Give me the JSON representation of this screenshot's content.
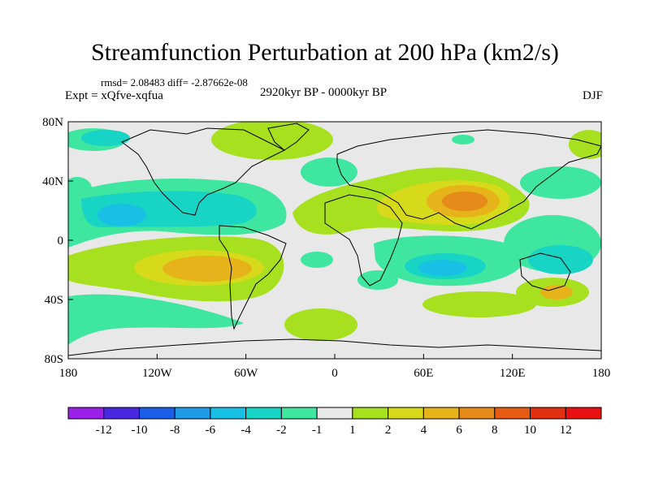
{
  "title": "Streamfunction Perturbation at 200 hPa (km2/s)",
  "stats": "rmsd= 2.08483 diff= -2.87662e-08",
  "experiment": "Expt = xQfve-xqfua",
  "period": "2920kyr BP - 0000kyr BP",
  "season": "DJF",
  "lat_ticks": [
    "80N",
    "40N",
    "0",
    "40S",
    "80S"
  ],
  "lon_ticks": [
    "180",
    "120W",
    "60W",
    "0",
    "60E",
    "120E",
    "180"
  ],
  "colorbar": {
    "labels": [
      "-12",
      "-10",
      "-8",
      "-6",
      "-4",
      "-2",
      "-1",
      "1",
      "2",
      "4",
      "6",
      "8",
      "10",
      "12"
    ],
    "colors": [
      "#9a20e8",
      "#4828e0",
      "#1a5ee8",
      "#1e9ae6",
      "#18c0e6",
      "#18d4c4",
      "#3ee6a0",
      "#e8e8e8",
      "#a6e01e",
      "#d6da1a",
      "#e6b41a",
      "#e68a1a",
      "#e65a12",
      "#e03010",
      "#e81010"
    ]
  },
  "map_fills": {
    "neutral": "#e8e8e8",
    "pos1": "#a6e01e",
    "pos2": "#d6da1a",
    "pos3": "#e6b41a",
    "pos4": "#e68a1a",
    "neg1": "#3ee6a0",
    "neg2": "#18d4c4",
    "neg3": "#18c0e6",
    "coast": "#000000"
  }
}
